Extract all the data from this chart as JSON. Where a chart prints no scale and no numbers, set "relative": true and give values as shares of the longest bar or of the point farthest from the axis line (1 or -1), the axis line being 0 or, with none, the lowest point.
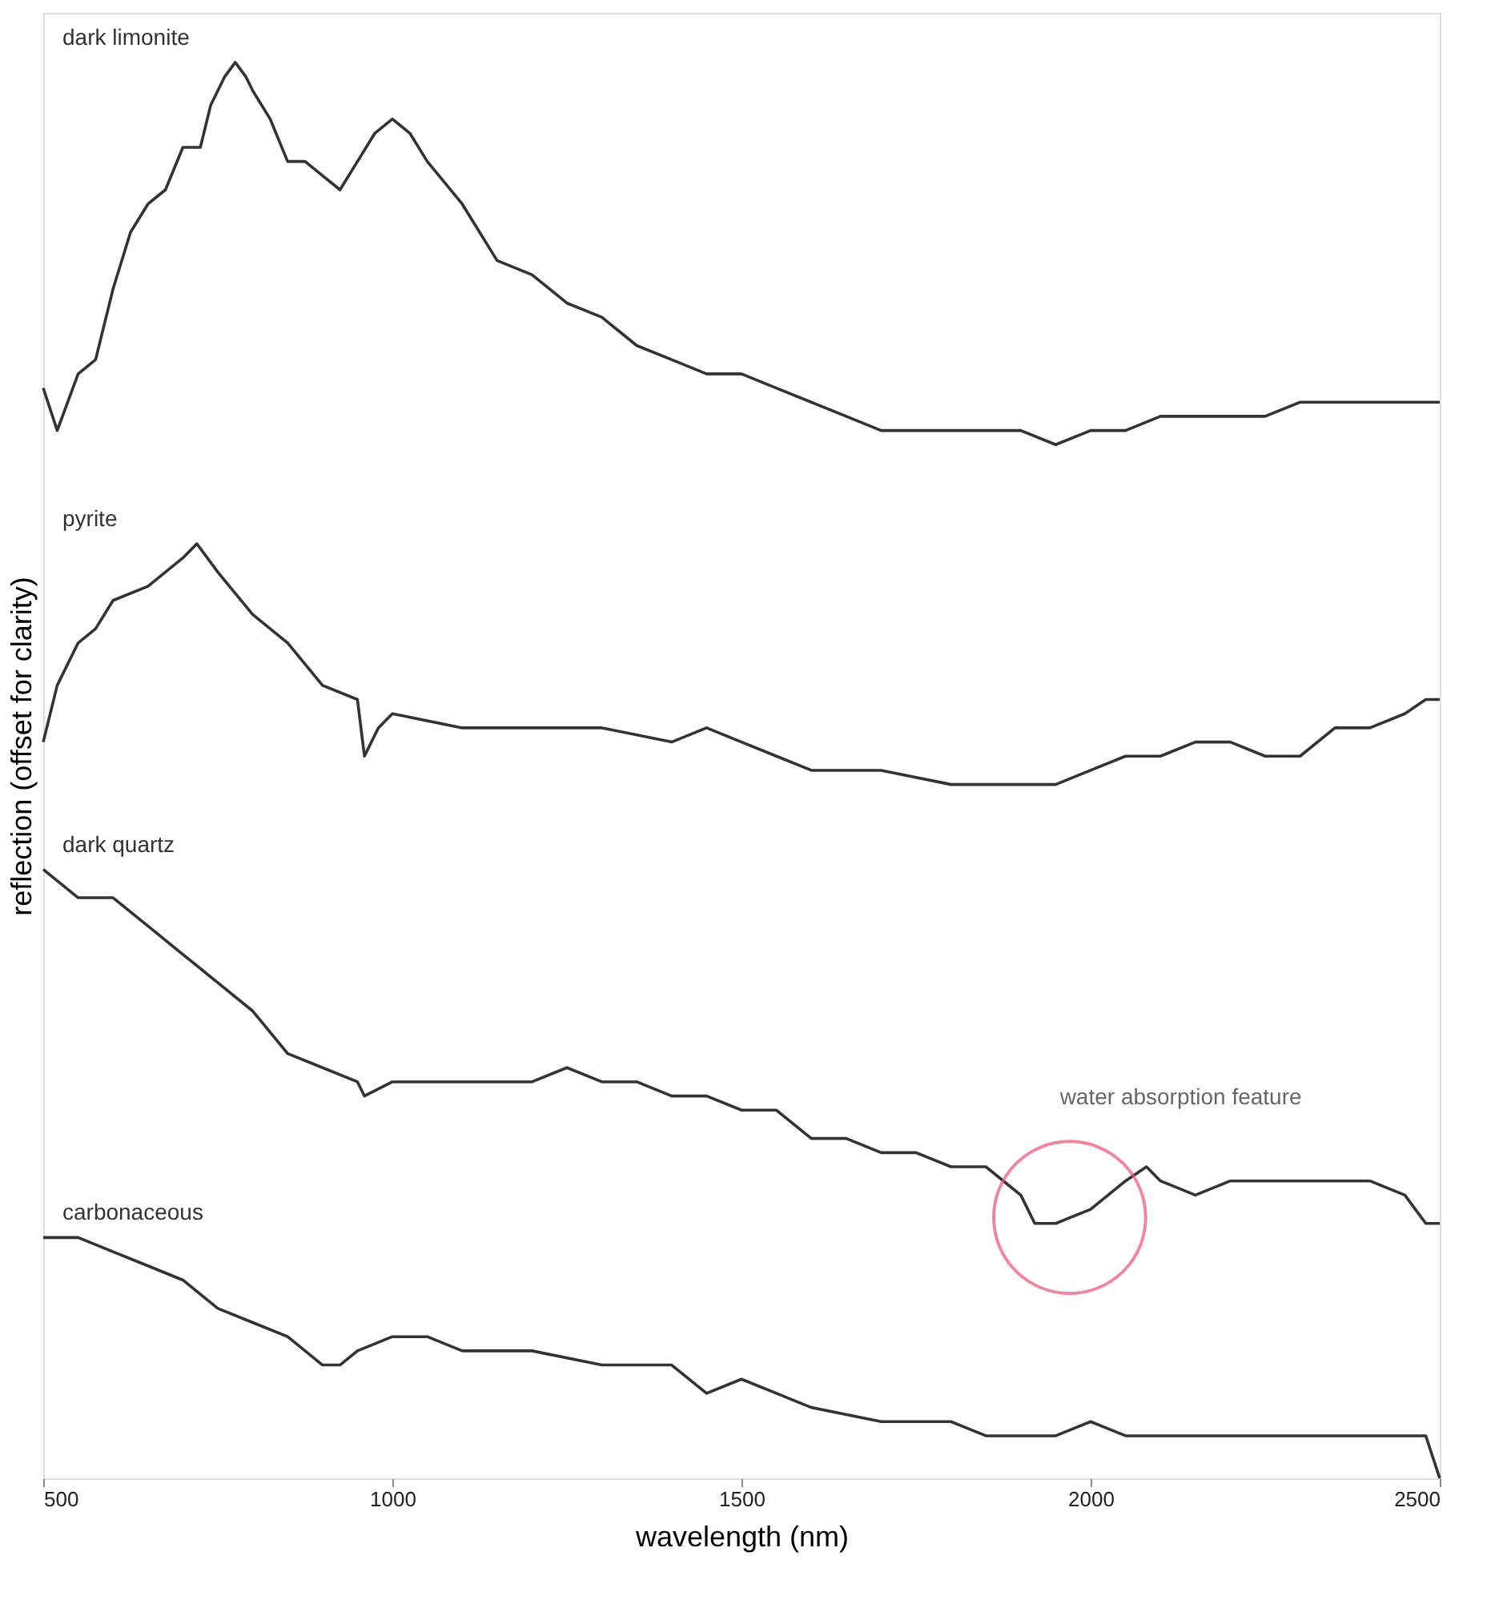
{
  "chart_data": {
    "type": "line",
    "relative": true,
    "xlabel": "wavelength (nm)",
    "ylabel": "reflection (offset for clarity)",
    "xlim": [
      500,
      2500
    ],
    "xticks": [
      500,
      1000,
      1500,
      2000,
      2500
    ],
    "grid": false,
    "line_style": "solid",
    "marker": "none",
    "tick_labels": "x",
    "annotations": [
      "water absorption feature"
    ],
    "series": [
      {
        "name": "dark limonite",
        "color": "#333333",
        "x": [
          500,
          520,
          550,
          575,
          600,
          625,
          650,
          675,
          700,
          725,
          740,
          760,
          775,
          790,
          800,
          825,
          850,
          875,
          900,
          925,
          950,
          975,
          1000,
          1025,
          1050,
          1100,
          1150,
          1200,
          1250,
          1300,
          1350,
          1400,
          1450,
          1500,
          1550,
          1600,
          1650,
          1700,
          1750,
          1800,
          1850,
          1900,
          1950,
          2000,
          2050,
          2100,
          2150,
          2200,
          2250,
          2300,
          2350,
          2400,
          2450,
          2500
        ],
        "values": [
          0.77,
          0.74,
          0.78,
          0.79,
          0.84,
          0.88,
          0.9,
          0.91,
          0.94,
          0.94,
          0.97,
          0.99,
          1.0,
          0.99,
          0.98,
          0.96,
          0.93,
          0.93,
          0.92,
          0.91,
          0.93,
          0.95,
          0.96,
          0.95,
          0.93,
          0.9,
          0.86,
          0.85,
          0.83,
          0.82,
          0.8,
          0.79,
          0.78,
          0.78,
          0.77,
          0.76,
          0.75,
          0.74,
          0.74,
          0.74,
          0.74,
          0.74,
          0.73,
          0.74,
          0.74,
          0.75,
          0.75,
          0.75,
          0.75,
          0.76,
          0.76,
          0.76,
          0.76,
          0.76
        ]
      },
      {
        "name": "pyrite",
        "color": "#333333",
        "x": [
          500,
          520,
          550,
          575,
          600,
          650,
          700,
          720,
          750,
          800,
          850,
          900,
          950,
          960,
          980,
          1000,
          1100,
          1200,
          1300,
          1400,
          1450,
          1500,
          1550,
          1600,
          1700,
          1800,
          1900,
          1950,
          2000,
          2050,
          2100,
          2150,
          2200,
          2250,
          2300,
          2350,
          2400,
          2450,
          2480,
          2500
        ],
        "values": [
          0.52,
          0.56,
          0.59,
          0.6,
          0.62,
          0.63,
          0.65,
          0.66,
          0.64,
          0.61,
          0.59,
          0.56,
          0.55,
          0.51,
          0.53,
          0.54,
          0.53,
          0.53,
          0.53,
          0.52,
          0.53,
          0.52,
          0.51,
          0.5,
          0.5,
          0.49,
          0.49,
          0.49,
          0.5,
          0.51,
          0.51,
          0.52,
          0.52,
          0.51,
          0.51,
          0.53,
          0.53,
          0.54,
          0.55,
          0.55
        ]
      },
      {
        "name": "dark quartz",
        "color": "#333333",
        "x": [
          500,
          550,
          600,
          650,
          700,
          750,
          800,
          850,
          900,
          950,
          960,
          1000,
          1100,
          1150,
          1200,
          1250,
          1300,
          1350,
          1400,
          1450,
          1500,
          1550,
          1600,
          1650,
          1700,
          1750,
          1800,
          1850,
          1900,
          1920,
          1950,
          2000,
          2050,
          2080,
          2100,
          2150,
          2200,
          2250,
          2300,
          2350,
          2400,
          2450,
          2480,
          2500
        ],
        "values": [
          0.43,
          0.41,
          0.41,
          0.39,
          0.37,
          0.35,
          0.33,
          0.3,
          0.29,
          0.28,
          0.27,
          0.28,
          0.28,
          0.28,
          0.28,
          0.29,
          0.28,
          0.28,
          0.27,
          0.27,
          0.26,
          0.26,
          0.24,
          0.24,
          0.23,
          0.23,
          0.22,
          0.22,
          0.2,
          0.18,
          0.18,
          0.19,
          0.21,
          0.22,
          0.21,
          0.2,
          0.21,
          0.21,
          0.21,
          0.21,
          0.21,
          0.2,
          0.18,
          0.18
        ]
      },
      {
        "name": "carbonaceous",
        "color": "#333333",
        "x": [
          500,
          550,
          600,
          650,
          700,
          750,
          800,
          850,
          900,
          925,
          950,
          1000,
          1050,
          1100,
          1200,
          1300,
          1350,
          1400,
          1450,
          1500,
          1550,
          1600,
          1700,
          1800,
          1850,
          1900,
          1950,
          2000,
          2050,
          2100,
          2200,
          2300,
          2400,
          2450,
          2480,
          2500
        ],
        "values": [
          0.17,
          0.17,
          0.16,
          0.15,
          0.14,
          0.12,
          0.11,
          0.1,
          0.08,
          0.08,
          0.09,
          0.1,
          0.1,
          0.09,
          0.09,
          0.08,
          0.08,
          0.08,
          0.06,
          0.07,
          0.06,
          0.05,
          0.04,
          0.04,
          0.03,
          0.03,
          0.03,
          0.04,
          0.03,
          0.03,
          0.03,
          0.03,
          0.03,
          0.03,
          0.03,
          0
        ]
      }
    ]
  }
}
